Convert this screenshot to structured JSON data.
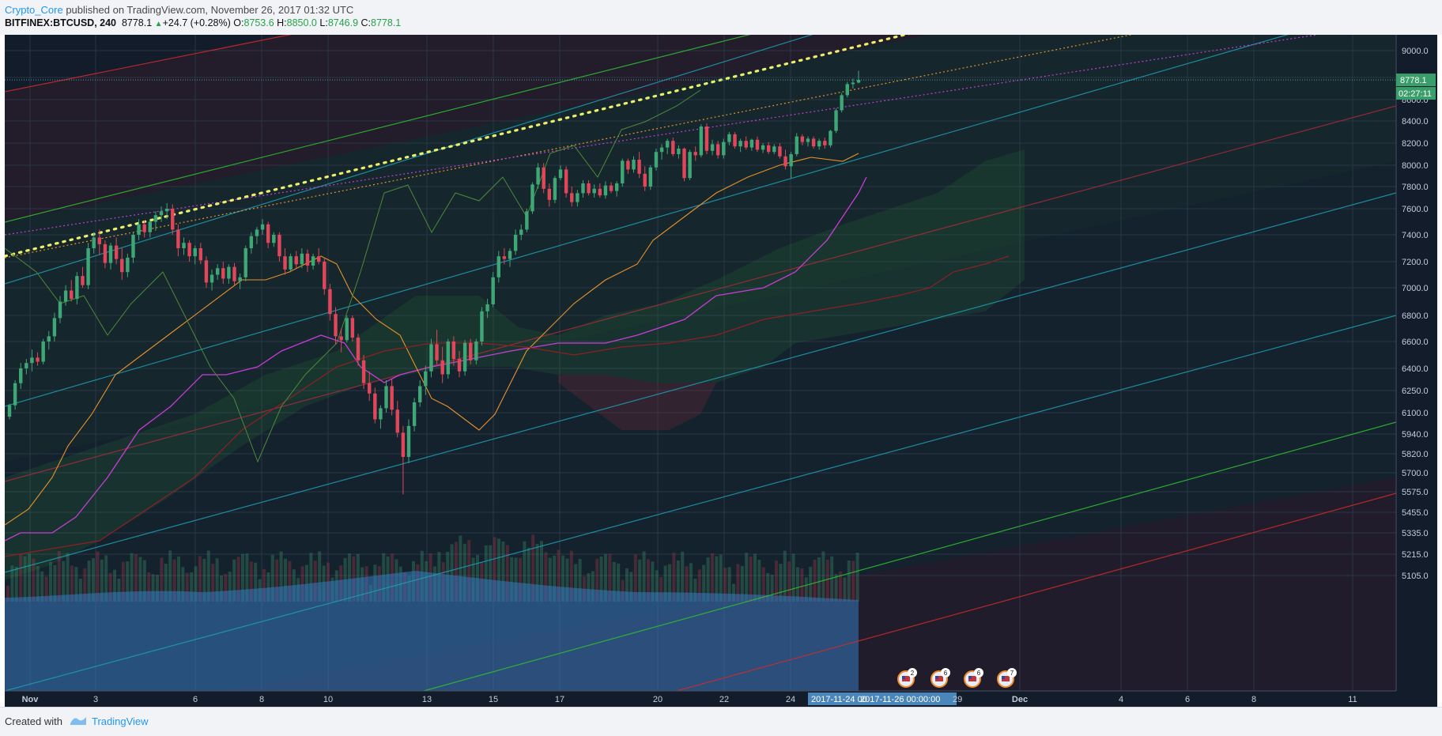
{
  "header": {
    "username": "Crypto_Core",
    "published_text": " published on TradingView.com, November 26, 2017 01:32 UTC",
    "symbol": "BITFINEX:BTCUSD, 240",
    "last": "8778.1",
    "change": "+24.7 (+0.28%)",
    "o_label": "O:",
    "o_value": "8753.6",
    "h_label": "H:",
    "h_value": "8850.0",
    "l_label": "L:",
    "l_value": "8746.9",
    "c_label": "C:",
    "c_value": "8778.1"
  },
  "footer": {
    "created_with": "Created with",
    "brand": "TradingView"
  },
  "colors": {
    "background": "#131c2b",
    "grid": "#2a3646",
    "up": "#3fa776",
    "down": "#e0475a",
    "red_channel": "#d42a2a",
    "green_channel": "#2fc22f",
    "teal_channel": "#1f9eb4",
    "magenta": "#c93cd6",
    "orange": "#e6922a",
    "yellow_dots": "#ecef6a"
  },
  "chart_data": {
    "type": "candlestick",
    "title": "",
    "ylim": [
      5050,
      9150
    ],
    "y_ticks": [
      "9000.0",
      "8800.0",
      "8600.0",
      "8400.0",
      "8200.0",
      "8000.0",
      "7800.0",
      "7600.0",
      "7400.0",
      "7200.0",
      "7000.0",
      "6800.0",
      "6600.0",
      "6400.0",
      "6250.0",
      "6100.0",
      "5940.0",
      "5820.0",
      "5700.0",
      "5575.0",
      "5455.0",
      "5335.0",
      "5215.0",
      "5105.0"
    ],
    "x_ticks": [
      "Nov",
      "3",
      "6",
      "8",
      "10",
      "13",
      "15",
      "17",
      "20",
      "22",
      "24",
      "Dec",
      "4",
      "6",
      "8",
      "11"
    ],
    "crosshair_dates": [
      "2017-11-24 00",
      "2017-11-26 00:00:00",
      "29"
    ],
    "price_label": "8778.1",
    "countdown_label": "02:27:11",
    "event_badges": [
      "2",
      "6",
      "6",
      "7"
    ],
    "candles": [
      {
        "o": 6070,
        "h": 6160,
        "l": 6050,
        "c": 6150
      },
      {
        "o": 6150,
        "h": 6320,
        "l": 6120,
        "c": 6300
      },
      {
        "o": 6300,
        "h": 6440,
        "l": 6260,
        "c": 6400
      },
      {
        "o": 6400,
        "h": 6470,
        "l": 6360,
        "c": 6440
      },
      {
        "o": 6440,
        "h": 6540,
        "l": 6380,
        "c": 6480
      },
      {
        "o": 6480,
        "h": 6520,
        "l": 6420,
        "c": 6450
      },
      {
        "o": 6450,
        "h": 6620,
        "l": 6430,
        "c": 6600
      },
      {
        "o": 6600,
        "h": 6680,
        "l": 6540,
        "c": 6640
      },
      {
        "o": 6640,
        "h": 6820,
        "l": 6600,
        "c": 6780
      },
      {
        "o": 6780,
        "h": 6940,
        "l": 6740,
        "c": 6900
      },
      {
        "o": 6900,
        "h": 7020,
        "l": 6870,
        "c": 6980
      },
      {
        "o": 6980,
        "h": 7060,
        "l": 6900,
        "c": 6920
      },
      {
        "o": 6920,
        "h": 7120,
        "l": 6880,
        "c": 7090
      },
      {
        "o": 7090,
        "h": 7160,
        "l": 7000,
        "c": 7020
      },
      {
        "o": 7020,
        "h": 7340,
        "l": 6990,
        "c": 7300
      },
      {
        "o": 7300,
        "h": 7420,
        "l": 7260,
        "c": 7380
      },
      {
        "o": 7380,
        "h": 7440,
        "l": 7250,
        "c": 7330
      },
      {
        "o": 7330,
        "h": 7360,
        "l": 7150,
        "c": 7190
      },
      {
        "o": 7190,
        "h": 7340,
        "l": 7140,
        "c": 7320
      },
      {
        "o": 7320,
        "h": 7380,
        "l": 7180,
        "c": 7220
      },
      {
        "o": 7220,
        "h": 7300,
        "l": 7060,
        "c": 7120
      },
      {
        "o": 7120,
        "h": 7260,
        "l": 7080,
        "c": 7230
      },
      {
        "o": 7230,
        "h": 7420,
        "l": 7190,
        "c": 7400
      },
      {
        "o": 7400,
        "h": 7520,
        "l": 7360,
        "c": 7480
      },
      {
        "o": 7480,
        "h": 7510,
        "l": 7380,
        "c": 7420
      },
      {
        "o": 7420,
        "h": 7520,
        "l": 7380,
        "c": 7500
      },
      {
        "o": 7500,
        "h": 7580,
        "l": 7430,
        "c": 7550
      },
      {
        "o": 7550,
        "h": 7620,
        "l": 7500,
        "c": 7580
      },
      {
        "o": 7580,
        "h": 7650,
        "l": 7520,
        "c": 7600
      },
      {
        "o": 7600,
        "h": 7640,
        "l": 7400,
        "c": 7440
      },
      {
        "o": 7440,
        "h": 7480,
        "l": 7240,
        "c": 7300
      },
      {
        "o": 7300,
        "h": 7380,
        "l": 7250,
        "c": 7340
      },
      {
        "o": 7340,
        "h": 7360,
        "l": 7200,
        "c": 7240
      },
      {
        "o": 7240,
        "h": 7320,
        "l": 7180,
        "c": 7300
      },
      {
        "o": 7300,
        "h": 7340,
        "l": 7180,
        "c": 7210
      },
      {
        "o": 7210,
        "h": 7240,
        "l": 7000,
        "c": 7040
      },
      {
        "o": 7040,
        "h": 7140,
        "l": 6980,
        "c": 7100
      },
      {
        "o": 7100,
        "h": 7180,
        "l": 7060,
        "c": 7150
      },
      {
        "o": 7150,
        "h": 7200,
        "l": 7030,
        "c": 7070
      },
      {
        "o": 7070,
        "h": 7180,
        "l": 7030,
        "c": 7160
      },
      {
        "o": 7160,
        "h": 7190,
        "l": 7020,
        "c": 7050
      },
      {
        "o": 7050,
        "h": 7110,
        "l": 6990,
        "c": 7080
      },
      {
        "o": 7080,
        "h": 7320,
        "l": 7050,
        "c": 7300
      },
      {
        "o": 7300,
        "h": 7420,
        "l": 7260,
        "c": 7390
      },
      {
        "o": 7390,
        "h": 7460,
        "l": 7330,
        "c": 7440
      },
      {
        "o": 7440,
        "h": 7520,
        "l": 7400,
        "c": 7480
      },
      {
        "o": 7480,
        "h": 7500,
        "l": 7300,
        "c": 7340
      },
      {
        "o": 7340,
        "h": 7420,
        "l": 7310,
        "c": 7400
      },
      {
        "o": 7400,
        "h": 7420,
        "l": 7200,
        "c": 7240
      },
      {
        "o": 7240,
        "h": 7300,
        "l": 7100,
        "c": 7140
      },
      {
        "o": 7140,
        "h": 7260,
        "l": 7120,
        "c": 7240
      },
      {
        "o": 7240,
        "h": 7280,
        "l": 7150,
        "c": 7180
      },
      {
        "o": 7180,
        "h": 7300,
        "l": 7150,
        "c": 7260
      },
      {
        "o": 7260,
        "h": 7290,
        "l": 7120,
        "c": 7170
      },
      {
        "o": 7170,
        "h": 7260,
        "l": 7140,
        "c": 7240
      },
      {
        "o": 7240,
        "h": 7300,
        "l": 7180,
        "c": 7200
      },
      {
        "o": 7200,
        "h": 7230,
        "l": 6950,
        "c": 6990
      },
      {
        "o": 6990,
        "h": 7030,
        "l": 6760,
        "c": 6810
      },
      {
        "o": 6810,
        "h": 6860,
        "l": 6580,
        "c": 6640
      },
      {
        "o": 6640,
        "h": 6700,
        "l": 6520,
        "c": 6610
      },
      {
        "o": 6610,
        "h": 6800,
        "l": 6590,
        "c": 6780
      },
      {
        "o": 6780,
        "h": 6800,
        "l": 6600,
        "c": 6630
      },
      {
        "o": 6630,
        "h": 6660,
        "l": 6420,
        "c": 6460
      },
      {
        "o": 6460,
        "h": 6500,
        "l": 6260,
        "c": 6300
      },
      {
        "o": 6300,
        "h": 6380,
        "l": 6180,
        "c": 6230
      },
      {
        "o": 6230,
        "h": 6270,
        "l": 6020,
        "c": 6050
      },
      {
        "o": 6050,
        "h": 6150,
        "l": 5980,
        "c": 6130
      },
      {
        "o": 6130,
        "h": 6320,
        "l": 6100,
        "c": 6280
      },
      {
        "o": 6280,
        "h": 6330,
        "l": 6080,
        "c": 6120
      },
      {
        "o": 6120,
        "h": 6180,
        "l": 5920,
        "c": 5950
      },
      {
        "o": 5950,
        "h": 6000,
        "l": 5560,
        "c": 5800
      },
      {
        "o": 5800,
        "h": 6050,
        "l": 5760,
        "c": 6000
      },
      {
        "o": 6000,
        "h": 6200,
        "l": 5960,
        "c": 6170
      },
      {
        "o": 6170,
        "h": 6320,
        "l": 6140,
        "c": 6280
      },
      {
        "o": 6280,
        "h": 6420,
        "l": 6220,
        "c": 6380
      },
      {
        "o": 6380,
        "h": 6620,
        "l": 6340,
        "c": 6580
      },
      {
        "o": 6580,
        "h": 6690,
        "l": 6430,
        "c": 6460
      },
      {
        "o": 6460,
        "h": 6560,
        "l": 6300,
        "c": 6360
      },
      {
        "o": 6360,
        "h": 6620,
        "l": 6330,
        "c": 6600
      },
      {
        "o": 6600,
        "h": 6640,
        "l": 6420,
        "c": 6470
      },
      {
        "o": 6470,
        "h": 6530,
        "l": 6340,
        "c": 6380
      },
      {
        "o": 6380,
        "h": 6610,
        "l": 6350,
        "c": 6590
      },
      {
        "o": 6590,
        "h": 6620,
        "l": 6430,
        "c": 6460
      },
      {
        "o": 6460,
        "h": 6620,
        "l": 6430,
        "c": 6600
      },
      {
        "o": 6600,
        "h": 6860,
        "l": 6570,
        "c": 6830
      },
      {
        "o": 6830,
        "h": 6920,
        "l": 6780,
        "c": 6880
      },
      {
        "o": 6880,
        "h": 7120,
        "l": 6860,
        "c": 7080
      },
      {
        "o": 7080,
        "h": 7280,
        "l": 7040,
        "c": 7240
      },
      {
        "o": 7240,
        "h": 7300,
        "l": 7180,
        "c": 7220
      },
      {
        "o": 7220,
        "h": 7300,
        "l": 7160,
        "c": 7280
      },
      {
        "o": 7280,
        "h": 7440,
        "l": 7250,
        "c": 7400
      },
      {
        "o": 7400,
        "h": 7480,
        "l": 7360,
        "c": 7440
      },
      {
        "o": 7440,
        "h": 7600,
        "l": 7420,
        "c": 7580
      },
      {
        "o": 7580,
        "h": 7840,
        "l": 7560,
        "c": 7820
      },
      {
        "o": 7820,
        "h": 8020,
        "l": 7780,
        "c": 7980
      },
      {
        "o": 7980,
        "h": 8020,
        "l": 7740,
        "c": 7780
      },
      {
        "o": 7780,
        "h": 7830,
        "l": 7620,
        "c": 7680
      },
      {
        "o": 7680,
        "h": 7900,
        "l": 7650,
        "c": 7880
      },
      {
        "o": 7880,
        "h": 8000,
        "l": 7860,
        "c": 7960
      },
      {
        "o": 7960,
        "h": 7990,
        "l": 7700,
        "c": 7740
      },
      {
        "o": 7740,
        "h": 7800,
        "l": 7620,
        "c": 7660
      },
      {
        "o": 7660,
        "h": 7770,
        "l": 7620,
        "c": 7740
      },
      {
        "o": 7740,
        "h": 7860,
        "l": 7700,
        "c": 7830
      },
      {
        "o": 7830,
        "h": 7860,
        "l": 7720,
        "c": 7740
      },
      {
        "o": 7740,
        "h": 7820,
        "l": 7700,
        "c": 7780
      },
      {
        "o": 7780,
        "h": 7830,
        "l": 7700,
        "c": 7720
      },
      {
        "o": 7720,
        "h": 7850,
        "l": 7690,
        "c": 7810
      },
      {
        "o": 7810,
        "h": 7840,
        "l": 7740,
        "c": 7760
      },
      {
        "o": 7760,
        "h": 7850,
        "l": 7710,
        "c": 7830
      },
      {
        "o": 7830,
        "h": 8060,
        "l": 7800,
        "c": 8040
      },
      {
        "o": 8040,
        "h": 8060,
        "l": 7920,
        "c": 7960
      },
      {
        "o": 7960,
        "h": 8080,
        "l": 7930,
        "c": 8050
      },
      {
        "o": 8050,
        "h": 8120,
        "l": 7880,
        "c": 7920
      },
      {
        "o": 7920,
        "h": 7990,
        "l": 7760,
        "c": 7800
      },
      {
        "o": 7800,
        "h": 8000,
        "l": 7770,
        "c": 7980
      },
      {
        "o": 7980,
        "h": 8150,
        "l": 7950,
        "c": 8120
      },
      {
        "o": 8120,
        "h": 8190,
        "l": 8050,
        "c": 8160
      },
      {
        "o": 8160,
        "h": 8240,
        "l": 8100,
        "c": 8220
      },
      {
        "o": 8220,
        "h": 8250,
        "l": 8080,
        "c": 8100
      },
      {
        "o": 8100,
        "h": 8180,
        "l": 8060,
        "c": 8150
      },
      {
        "o": 8150,
        "h": 8160,
        "l": 7850,
        "c": 7880
      },
      {
        "o": 7880,
        "h": 8140,
        "l": 7860,
        "c": 8120
      },
      {
        "o": 8120,
        "h": 8170,
        "l": 8040,
        "c": 8090
      },
      {
        "o": 8090,
        "h": 8370,
        "l": 8070,
        "c": 8350
      },
      {
        "o": 8350,
        "h": 8380,
        "l": 8100,
        "c": 8130
      },
      {
        "o": 8130,
        "h": 8230,
        "l": 8090,
        "c": 8190
      },
      {
        "o": 8190,
        "h": 8220,
        "l": 8060,
        "c": 8090
      },
      {
        "o": 8090,
        "h": 8240,
        "l": 8060,
        "c": 8210
      },
      {
        "o": 8210,
        "h": 8300,
        "l": 8180,
        "c": 8280
      },
      {
        "o": 8280,
        "h": 8300,
        "l": 8150,
        "c": 8170
      },
      {
        "o": 8170,
        "h": 8240,
        "l": 8120,
        "c": 8220
      },
      {
        "o": 8220,
        "h": 8260,
        "l": 8140,
        "c": 8160
      },
      {
        "o": 8160,
        "h": 8240,
        "l": 8130,
        "c": 8230
      },
      {
        "o": 8230,
        "h": 8260,
        "l": 8120,
        "c": 8140
      },
      {
        "o": 8140,
        "h": 8200,
        "l": 8110,
        "c": 8180
      },
      {
        "o": 8180,
        "h": 8210,
        "l": 8100,
        "c": 8120
      },
      {
        "o": 8120,
        "h": 8190,
        "l": 8100,
        "c": 8170
      },
      {
        "o": 8170,
        "h": 8200,
        "l": 8060,
        "c": 8080
      },
      {
        "o": 8080,
        "h": 8140,
        "l": 7960,
        "c": 7990
      },
      {
        "o": 7990,
        "h": 8120,
        "l": 7880,
        "c": 8100
      },
      {
        "o": 8100,
        "h": 8290,
        "l": 8080,
        "c": 8260
      },
      {
        "o": 8260,
        "h": 8280,
        "l": 8180,
        "c": 8210
      },
      {
        "o": 8210,
        "h": 8260,
        "l": 8170,
        "c": 8240
      },
      {
        "o": 8240,
        "h": 8260,
        "l": 8150,
        "c": 8170
      },
      {
        "o": 8170,
        "h": 8240,
        "l": 8140,
        "c": 8220
      },
      {
        "o": 8220,
        "h": 8250,
        "l": 8150,
        "c": 8180
      },
      {
        "o": 8180,
        "h": 8320,
        "l": 8160,
        "c": 8310
      },
      {
        "o": 8310,
        "h": 8520,
        "l": 8290,
        "c": 8500
      },
      {
        "o": 8500,
        "h": 8660,
        "l": 8480,
        "c": 8640
      },
      {
        "o": 8640,
        "h": 8760,
        "l": 8620,
        "c": 8740
      },
      {
        "o": 8740,
        "h": 8790,
        "l": 8700,
        "c": 8753.6
      },
      {
        "o": 8753.6,
        "h": 8850,
        "l": 8746.9,
        "c": 8778.1
      }
    ]
  }
}
